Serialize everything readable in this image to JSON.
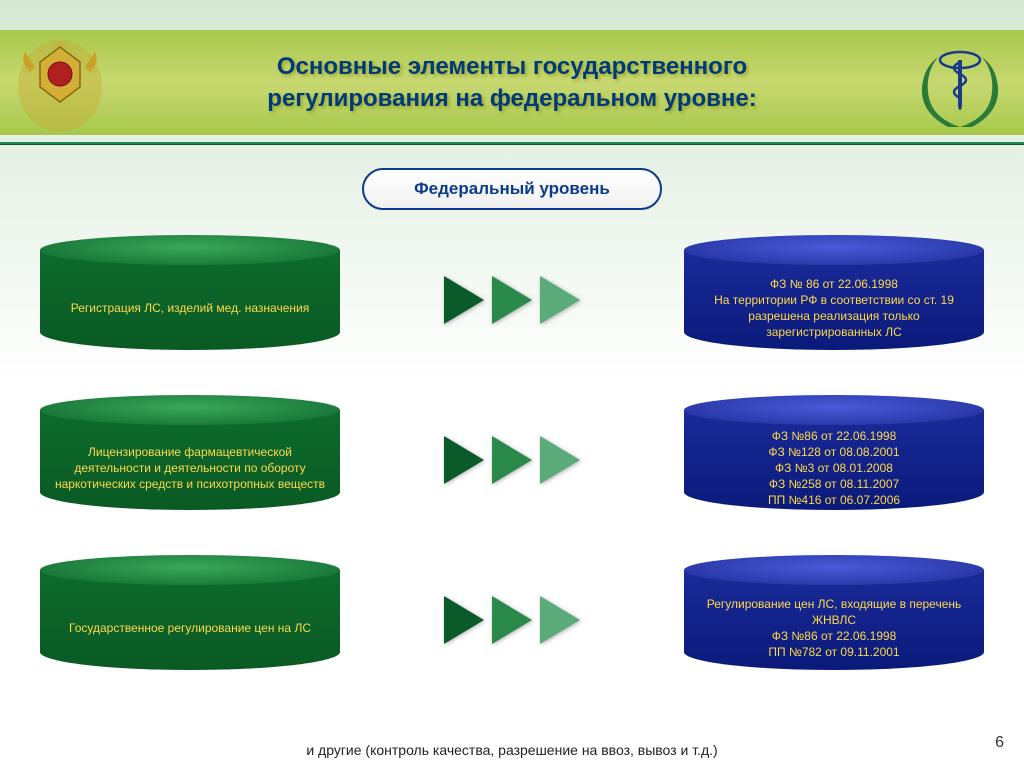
{
  "header": {
    "title": "Основные элементы государственного регулирования на федеральном уровне:"
  },
  "fed_level": {
    "label": "Федеральный уровень"
  },
  "colors": {
    "green_cyl": "#0d6b2d",
    "blue_cyl": "#1a2a9a",
    "arrow1": "#0a5a2a",
    "arrow2": "#2a8a4a",
    "arrow3": "#5aaa7a",
    "text_yellow": "#ffd94a"
  },
  "rows": [
    {
      "left": "Регистрация ЛС, изделий мед. назначения",
      "right": "ФЗ № 86 от 22.06.1998\nНа территории РФ в соответствии со ст. 19 разрешена реализация только зарегистрированных ЛС"
    },
    {
      "left": "Лицензирование фармацевтической деятельности и деятельности по обороту наркотических средств и психотропных веществ",
      "right": "ФЗ №86 от 22.06.1998\nФЗ №128 от 08.08.2001\nФЗ №3 от 08.01.2008\nФЗ №258 от 08.11.2007\nПП №416 от 06.07.2006"
    },
    {
      "left": "Государственное регулирование цен на ЛС",
      "right": "Регулирование цен ЛС, входящие в перечень ЖНВЛС\nФЗ №86 от 22.06.1998\nПП №782 от 09.11.2001"
    }
  ],
  "footer": {
    "note": "и  другие (контроль качества, разрешение на ввоз, вывоз и т.д.)",
    "page": "6"
  }
}
